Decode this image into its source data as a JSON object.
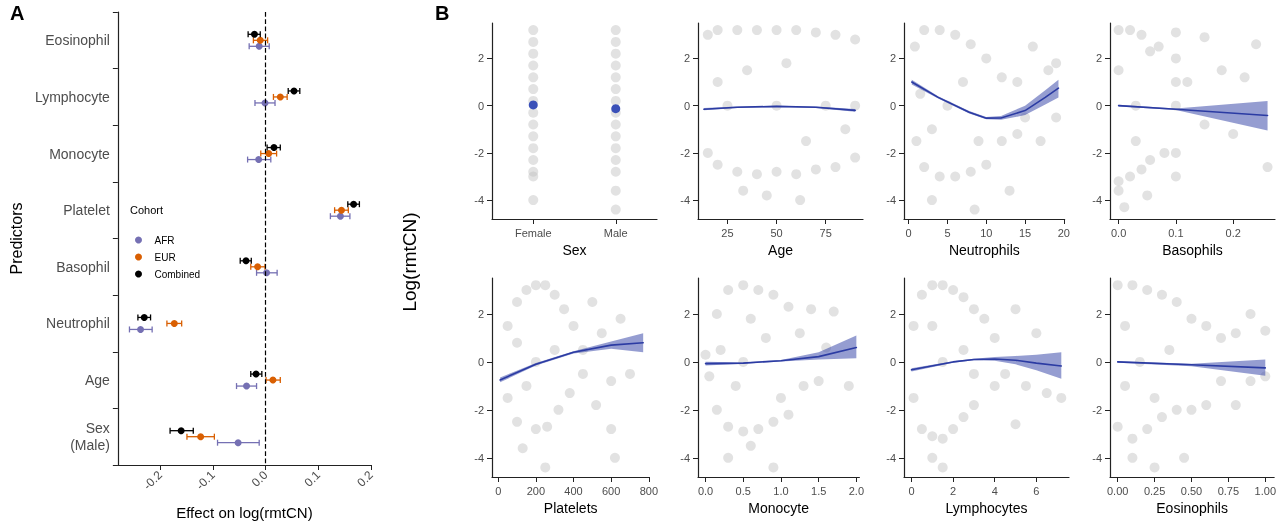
{
  "chart_data": [
    {
      "type": "scatter",
      "title": "A",
      "orientation": "horizontal",
      "xlabel": "Effect on log(rmtCN)",
      "ylabel": "Predictors",
      "legend_title": "Cohort",
      "legend": "left",
      "marker": "circle",
      "categories": [
        "Eosinophil",
        "Lymphocyte",
        "Monocyte",
        "Platelet",
        "Basophil",
        "Neutrophil",
        "Age",
        "Sex\n(Male)"
      ],
      "xlim": [
        -0.28,
        0.2
      ],
      "xticks": [
        -0.2,
        -0.1,
        {
          "value": 0,
          "label": "0.0"
        },
        0.1,
        0.2
      ],
      "ref_lines": [
        {
          "axis": "x",
          "value": 0,
          "line_style": "dashed",
          "color": "#000000"
        }
      ],
      "series": [
        {
          "name": "AFR",
          "color": "#7570b3",
          "values": [
            -0.012,
            -0.001,
            -0.013,
            0.142,
            0.002,
            -0.237,
            -0.036,
            -0.052
          ],
          "errors": [
            [
              -0.031,
              0.007
            ],
            [
              -0.02,
              0.018
            ],
            [
              -0.034,
              0.01
            ],
            [
              0.123,
              0.16
            ],
            [
              -0.017,
              0.022
            ],
            [
              -0.258,
              -0.215
            ],
            [
              -0.055,
              -0.017
            ],
            [
              -0.091,
              -0.012
            ]
          ]
        },
        {
          "name": "EUR",
          "color": "#d95f02",
          "values": [
            -0.01,
            0.028,
            0.006,
            0.144,
            -0.015,
            -0.173,
            0.014,
            -0.123
          ],
          "errors": [
            [
              -0.023,
              0.004
            ],
            [
              0.015,
              0.041
            ],
            [
              -0.009,
              0.021
            ],
            [
              0.131,
              0.157
            ],
            [
              -0.028,
              -0.001
            ],
            [
              -0.187,
              -0.159
            ],
            [
              0.001,
              0.028
            ],
            [
              -0.149,
              -0.097
            ]
          ]
        },
        {
          "name": "Combined",
          "color": "#000000",
          "values": [
            -0.021,
            0.054,
            0.016,
            0.167,
            -0.037,
            -0.23,
            -0.018,
            -0.16
          ],
          "errors": [
            [
              -0.033,
              -0.01
            ],
            [
              0.043,
              0.065
            ],
            [
              0.003,
              0.028
            ],
            [
              0.156,
              0.178
            ],
            [
              -0.048,
              -0.027
            ],
            [
              -0.242,
              -0.218
            ],
            [
              -0.028,
              -0.007
            ],
            [
              -0.181,
              -0.137
            ]
          ]
        }
      ]
    },
    {
      "type": "scatter",
      "title": "B",
      "xlabel": "Sex",
      "ylabel": "Log(rmtCN)",
      "categories": [
        "Female",
        "Male"
      ],
      "ylim": [
        -4.8,
        3.5
      ],
      "yticks": [
        -4,
        -2,
        0,
        2
      ],
      "series": [
        {
          "type": "scatter",
          "color": "#bebebe",
          "x": [
            "Female",
            "Female",
            "Female",
            "Female",
            "Female",
            "Female",
            "Female",
            "Female",
            "Female",
            "Female",
            "Female",
            "Female",
            "Female",
            "Female",
            "Female",
            "Male",
            "Male",
            "Male",
            "Male",
            "Male",
            "Male",
            "Male",
            "Male",
            "Male",
            "Male",
            "Male",
            "Male",
            "Male",
            "Male",
            "Male"
          ],
          "values": [
            3.2,
            2.7,
            2.2,
            1.7,
            1.2,
            0.7,
            0.2,
            -0.3,
            -0.8,
            -1.3,
            -1.8,
            -2.3,
            -2.8,
            -3.0,
            -4.0,
            3.2,
            2.7,
            2.2,
            1.7,
            1.2,
            0.7,
            0.2,
            -0.3,
            -0.8,
            -1.3,
            -1.8,
            -2.3,
            -2.8,
            -3.6,
            -4.4
          ]
        },
        {
          "type": "scatter",
          "color": "#3a50b8",
          "values": [
            0.03,
            -0.13
          ]
        }
      ]
    },
    {
      "type": "scatter",
      "xlabel": "Age",
      "xlim": [
        10,
        94
      ],
      "xticks": [
        25,
        50,
        75
      ],
      "ylim": [
        -4.8,
        3.5
      ],
      "yticks": [
        -4,
        -2,
        0,
        2
      ],
      "series": [
        {
          "type": "scatter",
          "color": "#bebebe",
          "x": [
            15,
            15,
            20,
            20,
            30,
            30,
            40,
            40,
            50,
            50,
            60,
            60,
            70,
            70,
            80,
            80,
            90,
            90,
            25,
            50,
            75,
            90,
            35,
            65,
            45,
            62,
            33,
            20,
            55,
            85
          ],
          "values": [
            3.0,
            -2.0,
            3.2,
            -2.5,
            3.2,
            -2.8,
            3.2,
            -2.9,
            3.2,
            -2.8,
            3.2,
            -2.9,
            3.1,
            -2.7,
            3.0,
            -2.6,
            2.8,
            -2.2,
            0,
            0,
            0,
            0,
            1.5,
            -1.5,
            -3.8,
            -4.0,
            -3.6,
            1.0,
            1.8,
            -1.0
          ]
        },
        {
          "type": "line",
          "color": "#2b3ba3",
          "x": [
            13,
            30,
            50,
            70,
            90
          ],
          "values": [
            -0.15,
            -0.07,
            -0.03,
            -0.07,
            -0.2
          ],
          "lower": [
            -0.2,
            -0.1,
            -0.06,
            -0.1,
            -0.26
          ],
          "upper": [
            -0.1,
            -0.04,
            0.0,
            -0.04,
            -0.14
          ]
        }
      ]
    },
    {
      "type": "scatter",
      "xlabel": "Neutrophils",
      "xlim": [
        -0.6,
        20.1
      ],
      "xticks": [
        0,
        5,
        10,
        15,
        20
      ],
      "ylim": [
        -4.8,
        3.5
      ],
      "yticks": [
        -4,
        -2,
        0,
        2
      ],
      "series": [
        {
          "type": "scatter",
          "color": "#bebebe",
          "x": [
            0.8,
            1,
            2,
            2,
            4,
            4,
            6,
            6,
            8,
            8,
            10,
            10,
            12,
            12,
            14,
            14,
            16,
            17,
            18,
            19,
            13,
            8.5,
            3,
            5,
            7,
            3,
            19,
            15,
            1.5,
            9
          ],
          "values": [
            2.5,
            -1.5,
            3.2,
            -2.6,
            3.2,
            -3.0,
            3.0,
            -3.0,
            2.6,
            -2.8,
            2.0,
            -2.5,
            1.2,
            -1.5,
            1.0,
            -1.2,
            2.5,
            -1.5,
            1.5,
            1.8,
            -3.6,
            -4.4,
            -4.0,
            0,
            1,
            -1,
            -0.5,
            -0.5,
            0.5,
            -1.5
          ]
        },
        {
          "type": "line",
          "color": "#2b3ba3",
          "x": [
            0.4,
            3.8,
            7.8,
            10,
            11.9,
            15,
            17.6,
            19.3
          ],
          "values": [
            1.0,
            0.35,
            -0.28,
            -0.53,
            -0.52,
            -0.21,
            0.35,
            0.74
          ],
          "lower": [
            0.9,
            0.3,
            -0.33,
            -0.58,
            -0.6,
            -0.4,
            0.05,
            0.35
          ],
          "upper": [
            1.1,
            0.4,
            -0.23,
            -0.48,
            -0.44,
            0.0,
            0.65,
            1.1
          ]
        }
      ]
    },
    {
      "type": "scatter",
      "xlabel": "Basophils",
      "xlim": [
        -0.015,
        0.273
      ],
      "xticks": [
        {
          "value": 0,
          "label": "0.0"
        },
        0.1,
        0.2
      ],
      "ylim": [
        -4.8,
        3.5
      ],
      "yticks": [
        -4,
        -2,
        0,
        2
      ],
      "series": [
        {
          "type": "scatter",
          "color": "#bebebe",
          "x": [
            0,
            0,
            0,
            0.02,
            0.02,
            0.04,
            0.04,
            0.055,
            0.055,
            0.07,
            0.08,
            0.1,
            0.1,
            0.1,
            0.1,
            0.1,
            0.12,
            0.15,
            0.15,
            0.18,
            0.2,
            0.24,
            0.26,
            0.22,
            0.03,
            0.01,
            0.05,
            0.0,
            0.03,
            0.1
          ],
          "values": [
            3.2,
            -3.2,
            -3.6,
            3.2,
            -3.0,
            3.0,
            -2.7,
            2.3,
            -2.3,
            2.5,
            -2.0,
            3.1,
            2.0,
            0,
            -2.0,
            -3.0,
            1.0,
            2.9,
            -0.8,
            1.5,
            -1.2,
            2.6,
            -2.6,
            1.2,
            0,
            -4.3,
            -3.8,
            1.5,
            -1.5,
            1.0
          ]
        },
        {
          "type": "line",
          "color": "#2b3ba3",
          "x": [
            0,
            0.1,
            0.26
          ],
          "values": [
            0,
            -0.15,
            -0.42
          ],
          "lower": [
            -0.04,
            -0.18,
            -1.05
          ],
          "upper": [
            0.04,
            -0.12,
            0.2
          ]
        }
      ]
    },
    {
      "type": "scatter",
      "xlabel": "Platelets",
      "xlim": [
        -33,
        803
      ],
      "xticks": [
        0,
        200,
        400,
        600,
        800
      ],
      "ylim": [
        -4.8,
        3.5
      ],
      "yticks": [
        -4,
        -2,
        0,
        2
      ],
      "series": [
        {
          "type": "scatter",
          "color": "#bebebe",
          "x": [
            50,
            50,
            100,
            100,
            150,
            200,
            250,
            300,
            350,
            400,
            450,
            200,
            260,
            320,
            380,
            450,
            500,
            550,
            600,
            650,
            700,
            520,
            600,
            620,
            250,
            130,
            200,
            300,
            150,
            100
          ],
          "values": [
            1.5,
            -1.5,
            2.5,
            -2.5,
            3.0,
            3.2,
            3.2,
            2.8,
            2.2,
            1.5,
            0.5,
            -2.8,
            -2.7,
            -2.0,
            -1.3,
            -0.5,
            2.5,
            1.2,
            -0.8,
            1.8,
            -0.5,
            -1.8,
            -2.8,
            -4.0,
            -4.4,
            -3.6,
            0,
            0.5,
            -1,
            0.8
          ]
        },
        {
          "type": "line",
          "color": "#2b3ba3",
          "x": [
            10,
            200,
            400,
            600,
            770
          ],
          "values": [
            -0.75,
            -0.1,
            0.4,
            0.7,
            0.8
          ],
          "lower": [
            -0.85,
            -0.15,
            0.35,
            0.55,
            0.4
          ],
          "upper": [
            -0.65,
            -0.05,
            0.45,
            0.85,
            1.2
          ]
        }
      ]
    },
    {
      "type": "scatter",
      "xlabel": "Monocyte",
      "xlim": [
        -0.1,
        2.04
      ],
      "xticks": [
        {
          "value": 0,
          "label": "0.0"
        },
        0.5,
        {
          "value": 1,
          "label": "1.0"
        },
        1.5,
        {
          "value": 2,
          "label": "2.0"
        }
      ],
      "ylim": [
        -4.8,
        3.5
      ],
      "yticks": [
        -4,
        -2,
        0,
        2
      ],
      "series": [
        {
          "type": "scatter",
          "color": "#bebebe",
          "x": [
            0.0,
            0.05,
            0.15,
            0.15,
            0.3,
            0.3,
            0.5,
            0.5,
            0.7,
            0.7,
            0.9,
            0.9,
            1.1,
            1.1,
            1.25,
            1.3,
            1.4,
            1.5,
            1.6,
            1.7,
            1.9,
            0.6,
            0.9,
            0.3,
            0.5,
            0.8,
            0.4,
            1.0,
            0.6,
            0.2
          ],
          "values": [
            0.3,
            -0.6,
            2.0,
            -2.0,
            3.0,
            -2.7,
            3.2,
            -2.9,
            3.0,
            -2.8,
            2.8,
            -2.5,
            2.3,
            -2.2,
            1.2,
            -1.0,
            2.2,
            -0.8,
            0.6,
            2.1,
            -1.0,
            -3.5,
            -4.4,
            -4.0,
            0,
            1,
            -1,
            -1.5,
            1.8,
            0.5
          ]
        },
        {
          "type": "line",
          "color": "#2b3ba3",
          "x": [
            0,
            0.5,
            1.0,
            1.5,
            2.0
          ],
          "values": [
            -0.07,
            -0.05,
            0.05,
            0.22,
            0.6
          ],
          "lower": [
            -0.15,
            -0.08,
            0.02,
            0.1,
            0.15
          ],
          "upper": [
            0.01,
            -0.02,
            0.08,
            0.4,
            1.1
          ]
        }
      ]
    },
    {
      "type": "scatter",
      "xlabel": "Lymphocytes",
      "xlim": [
        -0.36,
        7.57
      ],
      "xticks": [
        0,
        2,
        4,
        6
      ],
      "ylim": [
        -4.8,
        3.5
      ],
      "yticks": [
        -4,
        -2,
        0,
        2
      ],
      "series": [
        {
          "type": "scatter",
          "color": "#bebebe",
          "x": [
            0.1,
            0.1,
            0.5,
            0.5,
            1,
            1,
            1.5,
            1.5,
            2,
            2,
            2.5,
            2.5,
            3,
            3,
            3.5,
            4,
            4,
            4.5,
            5,
            5.5,
            6,
            6.5,
            7.2,
            5,
            1.5,
            1,
            1.5,
            2.5,
            1,
            3
          ],
          "values": [
            1.5,
            -1.5,
            2.8,
            -2.8,
            3.2,
            -3.1,
            3.2,
            -3.2,
            3.0,
            -2.8,
            2.7,
            -2.3,
            2.2,
            -1.8,
            1.8,
            1.0,
            -1.0,
            -0.5,
            2.2,
            -1.0,
            1.2,
            -1.3,
            -1.5,
            -2.6,
            -4.4,
            -4.0,
            0,
            0.5,
            1.5,
            -0.5
          ]
        },
        {
          "type": "line",
          "color": "#2b3ba3",
          "x": [
            0,
            2,
            3,
            4,
            5,
            6,
            7.2
          ],
          "values": [
            -0.33,
            0.0,
            0.1,
            0.12,
            0.07,
            -0.05,
            -0.17
          ],
          "lower": [
            -0.4,
            -0.03,
            0.07,
            0.05,
            -0.1,
            -0.35,
            -0.7
          ],
          "upper": [
            -0.26,
            0.03,
            0.13,
            0.2,
            0.25,
            0.3,
            0.4
          ]
        }
      ]
    },
    {
      "type": "scatter",
      "xlabel": "Eosinophils",
      "xlim": [
        -0.052,
        1.06
      ],
      "xticks": [
        {
          "value": 0,
          "label": "0.00"
        },
        0.25,
        {
          "value": 0.5,
          "label": "0.50"
        },
        0.75,
        {
          "value": 1,
          "label": "1.00"
        }
      ],
      "ylim": [
        -4.8,
        3.5
      ],
      "yticks": [
        -4,
        -2,
        0,
        2
      ],
      "series": [
        {
          "type": "scatter",
          "color": "#bebebe",
          "x": [
            0,
            0,
            0.1,
            0.1,
            0.2,
            0.2,
            0.3,
            0.3,
            0.4,
            0.4,
            0.5,
            0.5,
            0.6,
            0.6,
            0.7,
            0.7,
            0.8,
            0.8,
            0.9,
            0.9,
            1.0,
            1.0,
            0.1,
            0.45,
            0.25,
            0.15,
            0.35,
            0.05,
            0.25,
            0.05
          ],
          "values": [
            3.2,
            -2.7,
            3.2,
            -3.2,
            3.0,
            -2.8,
            2.8,
            -2.3,
            2.5,
            -2.0,
            1.8,
            -2.0,
            1.5,
            -1.8,
            1.0,
            -0.8,
            1.2,
            -1.8,
            2.0,
            -0.8,
            1.3,
            -0.6,
            -4.0,
            -4.0,
            -4.4,
            0,
            0.5,
            1.5,
            -1.5,
            -1.0
          ]
        },
        {
          "type": "line",
          "color": "#2b3ba3",
          "x": [
            0,
            0.5,
            1.0
          ],
          "values": [
            0,
            -0.12,
            -0.25
          ],
          "lower": [
            -0.03,
            -0.18,
            -0.58
          ],
          "upper": [
            0.03,
            -0.08,
            0.1
          ]
        }
      ]
    }
  ]
}
